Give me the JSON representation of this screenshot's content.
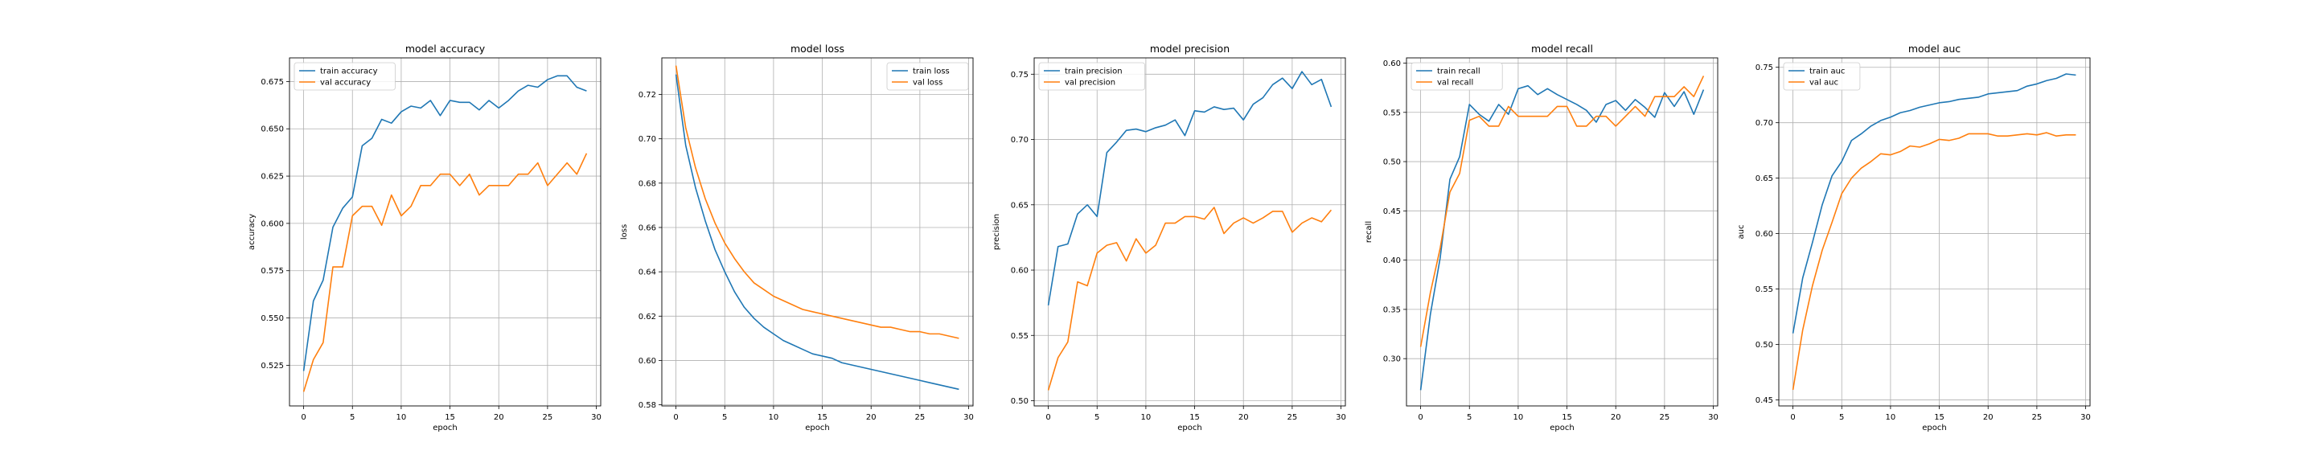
{
  "colors": {
    "train": "#1f77b4",
    "val": "#ff7f0e",
    "grid": "#b0b0b0"
  },
  "chart_data": [
    {
      "type": "line",
      "title": "model accuracy",
      "xlabel": "epoch",
      "ylabel": "accuracy",
      "xlim": [
        -1.45,
        30.45
      ],
      "ylim": [
        0.5035,
        0.6875
      ],
      "xticks": [
        0,
        5,
        10,
        15,
        20,
        25,
        30
      ],
      "xtick_labels": [
        "0",
        "5",
        "10",
        "15",
        "20",
        "25",
        "30"
      ],
      "yticks": [
        0.525,
        0.55,
        0.575,
        0.6,
        0.625,
        0.65,
        0.675
      ],
      "ytick_labels": [
        "0.525",
        "0.550",
        "0.575",
        "0.600",
        "0.625",
        "0.650",
        "0.675"
      ],
      "grid": true,
      "legend_loc": "upper left",
      "x": [
        0,
        1,
        2,
        3,
        4,
        5,
        6,
        7,
        8,
        9,
        10,
        11,
        12,
        13,
        14,
        15,
        16,
        17,
        18,
        19,
        20,
        21,
        22,
        23,
        24,
        25,
        26,
        27,
        28,
        29
      ],
      "series": [
        {
          "name": "train accuracy",
          "color": "#1f77b4",
          "values": [
            0.522,
            0.559,
            0.57,
            0.598,
            0.608,
            0.614,
            0.641,
            0.645,
            0.655,
            0.653,
            0.659,
            0.662,
            0.661,
            0.665,
            0.657,
            0.665,
            0.664,
            0.664,
            0.66,
            0.665,
            0.661,
            0.665,
            0.67,
            0.673,
            0.672,
            0.676,
            0.678,
            0.678,
            0.672,
            0.67
          ]
        },
        {
          "name": "val accuracy",
          "color": "#ff7f0e",
          "values": [
            0.511,
            0.528,
            0.537,
            0.577,
            0.577,
            0.604,
            0.609,
            0.609,
            0.599,
            0.615,
            0.604,
            0.609,
            0.62,
            0.62,
            0.626,
            0.626,
            0.62,
            0.626,
            0.615,
            0.62,
            0.62,
            0.62,
            0.626,
            0.626,
            0.632,
            0.62,
            0.626,
            0.632,
            0.626,
            0.637
          ]
        }
      ]
    },
    {
      "type": "line",
      "title": "model loss",
      "xlabel": "epoch",
      "ylabel": "loss",
      "xlim": [
        -1.45,
        30.45
      ],
      "ylim": [
        0.5795,
        0.7365
      ],
      "xticks": [
        0,
        5,
        10,
        15,
        20,
        25,
        30
      ],
      "xtick_labels": [
        "0",
        "5",
        "10",
        "15",
        "20",
        "25",
        "30"
      ],
      "yticks": [
        0.58,
        0.6,
        0.62,
        0.64,
        0.66,
        0.68,
        0.7,
        0.72
      ],
      "ytick_labels": [
        "0.58",
        "0.60",
        "0.62",
        "0.64",
        "0.66",
        "0.68",
        "0.70",
        "0.72"
      ],
      "grid": true,
      "legend_loc": "upper right",
      "x": [
        0,
        1,
        2,
        3,
        4,
        5,
        6,
        7,
        8,
        9,
        10,
        11,
        12,
        13,
        14,
        15,
        16,
        17,
        18,
        19,
        20,
        21,
        22,
        23,
        24,
        25,
        26,
        27,
        28,
        29
      ],
      "series": [
        {
          "name": "train loss",
          "color": "#1f77b4",
          "values": [
            0.729,
            0.697,
            0.678,
            0.663,
            0.65,
            0.64,
            0.631,
            0.624,
            0.619,
            0.615,
            0.612,
            0.609,
            0.607,
            0.605,
            0.603,
            0.602,
            0.601,
            0.599,
            0.598,
            0.597,
            0.596,
            0.595,
            0.594,
            0.593,
            0.592,
            0.591,
            0.59,
            0.589,
            0.588,
            0.587
          ]
        },
        {
          "name": "val loss",
          "color": "#ff7f0e",
          "values": [
            0.733,
            0.705,
            0.687,
            0.673,
            0.662,
            0.653,
            0.646,
            0.64,
            0.635,
            0.632,
            0.629,
            0.627,
            0.625,
            0.623,
            0.622,
            0.621,
            0.62,
            0.619,
            0.618,
            0.617,
            0.616,
            0.615,
            0.615,
            0.614,
            0.613,
            0.613,
            0.612,
            0.612,
            0.611,
            0.61
          ]
        }
      ]
    },
    {
      "type": "line",
      "title": "model precision",
      "xlabel": "epoch",
      "ylabel": "precision",
      "xlim": [
        -1.45,
        30.45
      ],
      "ylim": [
        0.496,
        0.7625
      ],
      "xticks": [
        0,
        5,
        10,
        15,
        20,
        25,
        30
      ],
      "xtick_labels": [
        "0",
        "5",
        "10",
        "15",
        "20",
        "25",
        "30"
      ],
      "yticks": [
        0.5,
        0.55,
        0.6,
        0.65,
        0.7,
        0.75
      ],
      "ytick_labels": [
        "0.50",
        "0.55",
        "0.60",
        "0.65",
        "0.70",
        "0.75"
      ],
      "grid": true,
      "legend_loc": "upper left",
      "x": [
        0,
        1,
        2,
        3,
        4,
        5,
        6,
        7,
        8,
        9,
        10,
        11,
        12,
        13,
        14,
        15,
        16,
        17,
        18,
        19,
        20,
        21,
        22,
        23,
        24,
        25,
        26,
        27,
        28,
        29
      ],
      "series": [
        {
          "name": "train precision",
          "color": "#1f77b4",
          "values": [
            0.573,
            0.618,
            0.62,
            0.643,
            0.65,
            0.641,
            0.69,
            0.698,
            0.707,
            0.708,
            0.706,
            0.709,
            0.711,
            0.715,
            0.703,
            0.722,
            0.721,
            0.725,
            0.723,
            0.724,
            0.715,
            0.727,
            0.732,
            0.742,
            0.747,
            0.739,
            0.752,
            0.742,
            0.746,
            0.725
          ]
        },
        {
          "name": "val precision",
          "color": "#ff7f0e",
          "values": [
            0.508,
            0.533,
            0.545,
            0.591,
            0.588,
            0.613,
            0.619,
            0.621,
            0.607,
            0.624,
            0.613,
            0.619,
            0.636,
            0.636,
            0.641,
            0.641,
            0.639,
            0.648,
            0.628,
            0.636,
            0.64,
            0.636,
            0.64,
            0.645,
            0.645,
            0.629,
            0.636,
            0.64,
            0.637,
            0.646
          ]
        }
      ]
    },
    {
      "type": "line",
      "title": "model recall",
      "xlabel": "epoch",
      "ylabel": "recall",
      "xlim": [
        -1.45,
        30.45
      ],
      "ylim": [
        0.252,
        0.6053
      ],
      "xticks": [
        0,
        5,
        10,
        15,
        20,
        25,
        30
      ],
      "xtick_labels": [
        "0",
        "5",
        "10",
        "15",
        "20",
        "25",
        "30"
      ],
      "yticks": [
        0.3,
        0.35,
        0.4,
        0.45,
        0.5,
        0.55,
        0.6
      ],
      "ytick_labels": [
        "0.30",
        "0.35",
        "0.40",
        "0.45",
        "0.50",
        "0.55",
        "0.60"
      ],
      "grid": true,
      "legend_loc": "upper left",
      "x": [
        0,
        1,
        2,
        3,
        4,
        5,
        6,
        7,
        8,
        9,
        10,
        11,
        12,
        13,
        14,
        15,
        16,
        17,
        18,
        19,
        20,
        21,
        22,
        23,
        24,
        25,
        26,
        27,
        28,
        29
      ],
      "series": [
        {
          "name": "train recall",
          "color": "#1f77b4",
          "values": [
            0.268,
            0.345,
            0.402,
            0.482,
            0.505,
            0.558,
            0.548,
            0.541,
            0.558,
            0.548,
            0.574,
            0.577,
            0.568,
            0.574,
            0.568,
            0.563,
            0.558,
            0.552,
            0.54,
            0.558,
            0.562,
            0.552,
            0.563,
            0.555,
            0.545,
            0.57,
            0.556,
            0.571,
            0.548,
            0.573
          ]
        },
        {
          "name": "val recall",
          "color": "#ff7f0e",
          "values": [
            0.312,
            0.367,
            0.412,
            0.469,
            0.488,
            0.542,
            0.546,
            0.536,
            0.536,
            0.556,
            0.546,
            0.546,
            0.546,
            0.546,
            0.556,
            0.556,
            0.536,
            0.536,
            0.546,
            0.546,
            0.536,
            0.546,
            0.556,
            0.546,
            0.566,
            0.566,
            0.566,
            0.576,
            0.566,
            0.587
          ]
        }
      ]
    },
    {
      "type": "line",
      "title": "model auc",
      "xlabel": "epoch",
      "ylabel": "auc",
      "xlim": [
        -1.45,
        30.45
      ],
      "ylim": [
        0.4445,
        0.7585
      ],
      "xticks": [
        0,
        5,
        10,
        15,
        20,
        25,
        30
      ],
      "xtick_labels": [
        "0",
        "5",
        "10",
        "15",
        "20",
        "25",
        "30"
      ],
      "yticks": [
        0.45,
        0.5,
        0.55,
        0.6,
        0.65,
        0.7,
        0.75
      ],
      "ytick_labels": [
        "0.45",
        "0.50",
        "0.55",
        "0.60",
        "0.65",
        "0.70",
        "0.75"
      ],
      "grid": true,
      "legend_loc": "upper left",
      "x": [
        0,
        1,
        2,
        3,
        4,
        5,
        6,
        7,
        8,
        9,
        10,
        11,
        12,
        13,
        14,
        15,
        16,
        17,
        18,
        19,
        20,
        21,
        22,
        23,
        24,
        25,
        26,
        27,
        28,
        29
      ],
      "series": [
        {
          "name": "train auc",
          "color": "#1f77b4",
          "values": [
            0.51,
            0.56,
            0.592,
            0.626,
            0.652,
            0.665,
            0.684,
            0.69,
            0.697,
            0.702,
            0.705,
            0.709,
            0.711,
            0.714,
            0.716,
            0.718,
            0.719,
            0.721,
            0.722,
            0.723,
            0.726,
            0.727,
            0.728,
            0.729,
            0.733,
            0.735,
            0.738,
            0.74,
            0.744,
            0.743
          ]
        },
        {
          "name": "val auc",
          "color": "#ff7f0e",
          "values": [
            0.459,
            0.513,
            0.553,
            0.585,
            0.61,
            0.636,
            0.65,
            0.659,
            0.665,
            0.672,
            0.671,
            0.674,
            0.679,
            0.678,
            0.681,
            0.685,
            0.684,
            0.686,
            0.69,
            0.69,
            0.69,
            0.688,
            0.688,
            0.689,
            0.69,
            0.689,
            0.691,
            0.688,
            0.689,
            0.689
          ]
        }
      ]
    }
  ]
}
